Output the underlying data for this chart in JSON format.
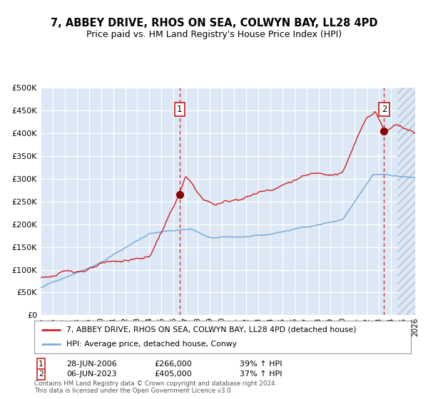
{
  "title1": "7, ABBEY DRIVE, RHOS ON SEA, COLWYN BAY, LL28 4PD",
  "title2": "Price paid vs. HM Land Registry's House Price Index (HPI)",
  "legend_line1": "7, ABBEY DRIVE, RHOS ON SEA, COLWYN BAY, LL28 4PD (detached house)",
  "legend_line2": "HPI: Average price, detached house, Conwy",
  "sale1_date": "28-JUN-2006",
  "sale1_price": 266000,
  "sale1_pct": "39%",
  "sale2_date": "06-JUN-2023",
  "sale2_price": 405000,
  "sale2_pct": "37%",
  "footer1": "Contains HM Land Registry data © Crown copyright and database right 2024.",
  "footer2": "This data is licensed under the Open Government Licence v3.0.",
  "hpi_color": "#7aabdb",
  "price_color": "#cc2222",
  "marker_color": "#8b0000",
  "bg_color": "#dce8f5",
  "vline1_color": "#cc2222",
  "vline2_color": "#cc2222",
  "ylim": [
    0,
    500000
  ],
  "yticks": [
    0,
    50000,
    100000,
    150000,
    200000,
    250000,
    300000,
    350000,
    400000,
    450000,
    500000
  ],
  "xlim_start": 1995.0,
  "xlim_end": 2026.0,
  "sale1_x": 2006.49,
  "sale2_x": 2023.43,
  "hatch_start": 2024.5
}
